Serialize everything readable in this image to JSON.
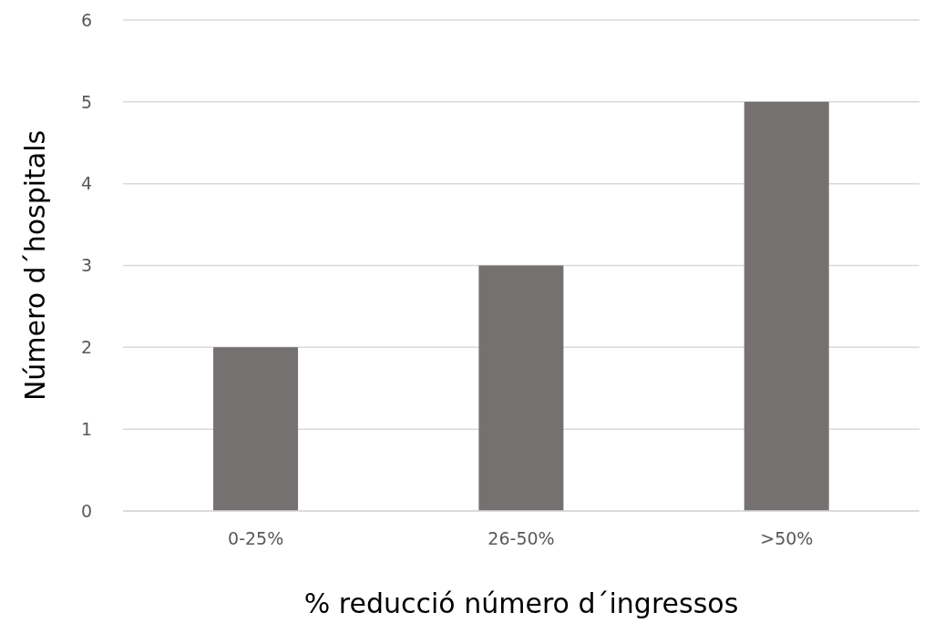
{
  "chart_data": {
    "type": "bar",
    "xlabel": "% reducció número d´ingressos",
    "ylabel": "Número d´hospitals",
    "categories": [
      "0-25%",
      "26-50%",
      ">50%"
    ],
    "values": [
      2,
      3,
      5
    ],
    "color": "#767171",
    "ylim": [
      0,
      6
    ],
    "yticks": [
      0,
      1,
      2,
      3,
      4,
      5,
      6
    ],
    "grid": "y"
  }
}
